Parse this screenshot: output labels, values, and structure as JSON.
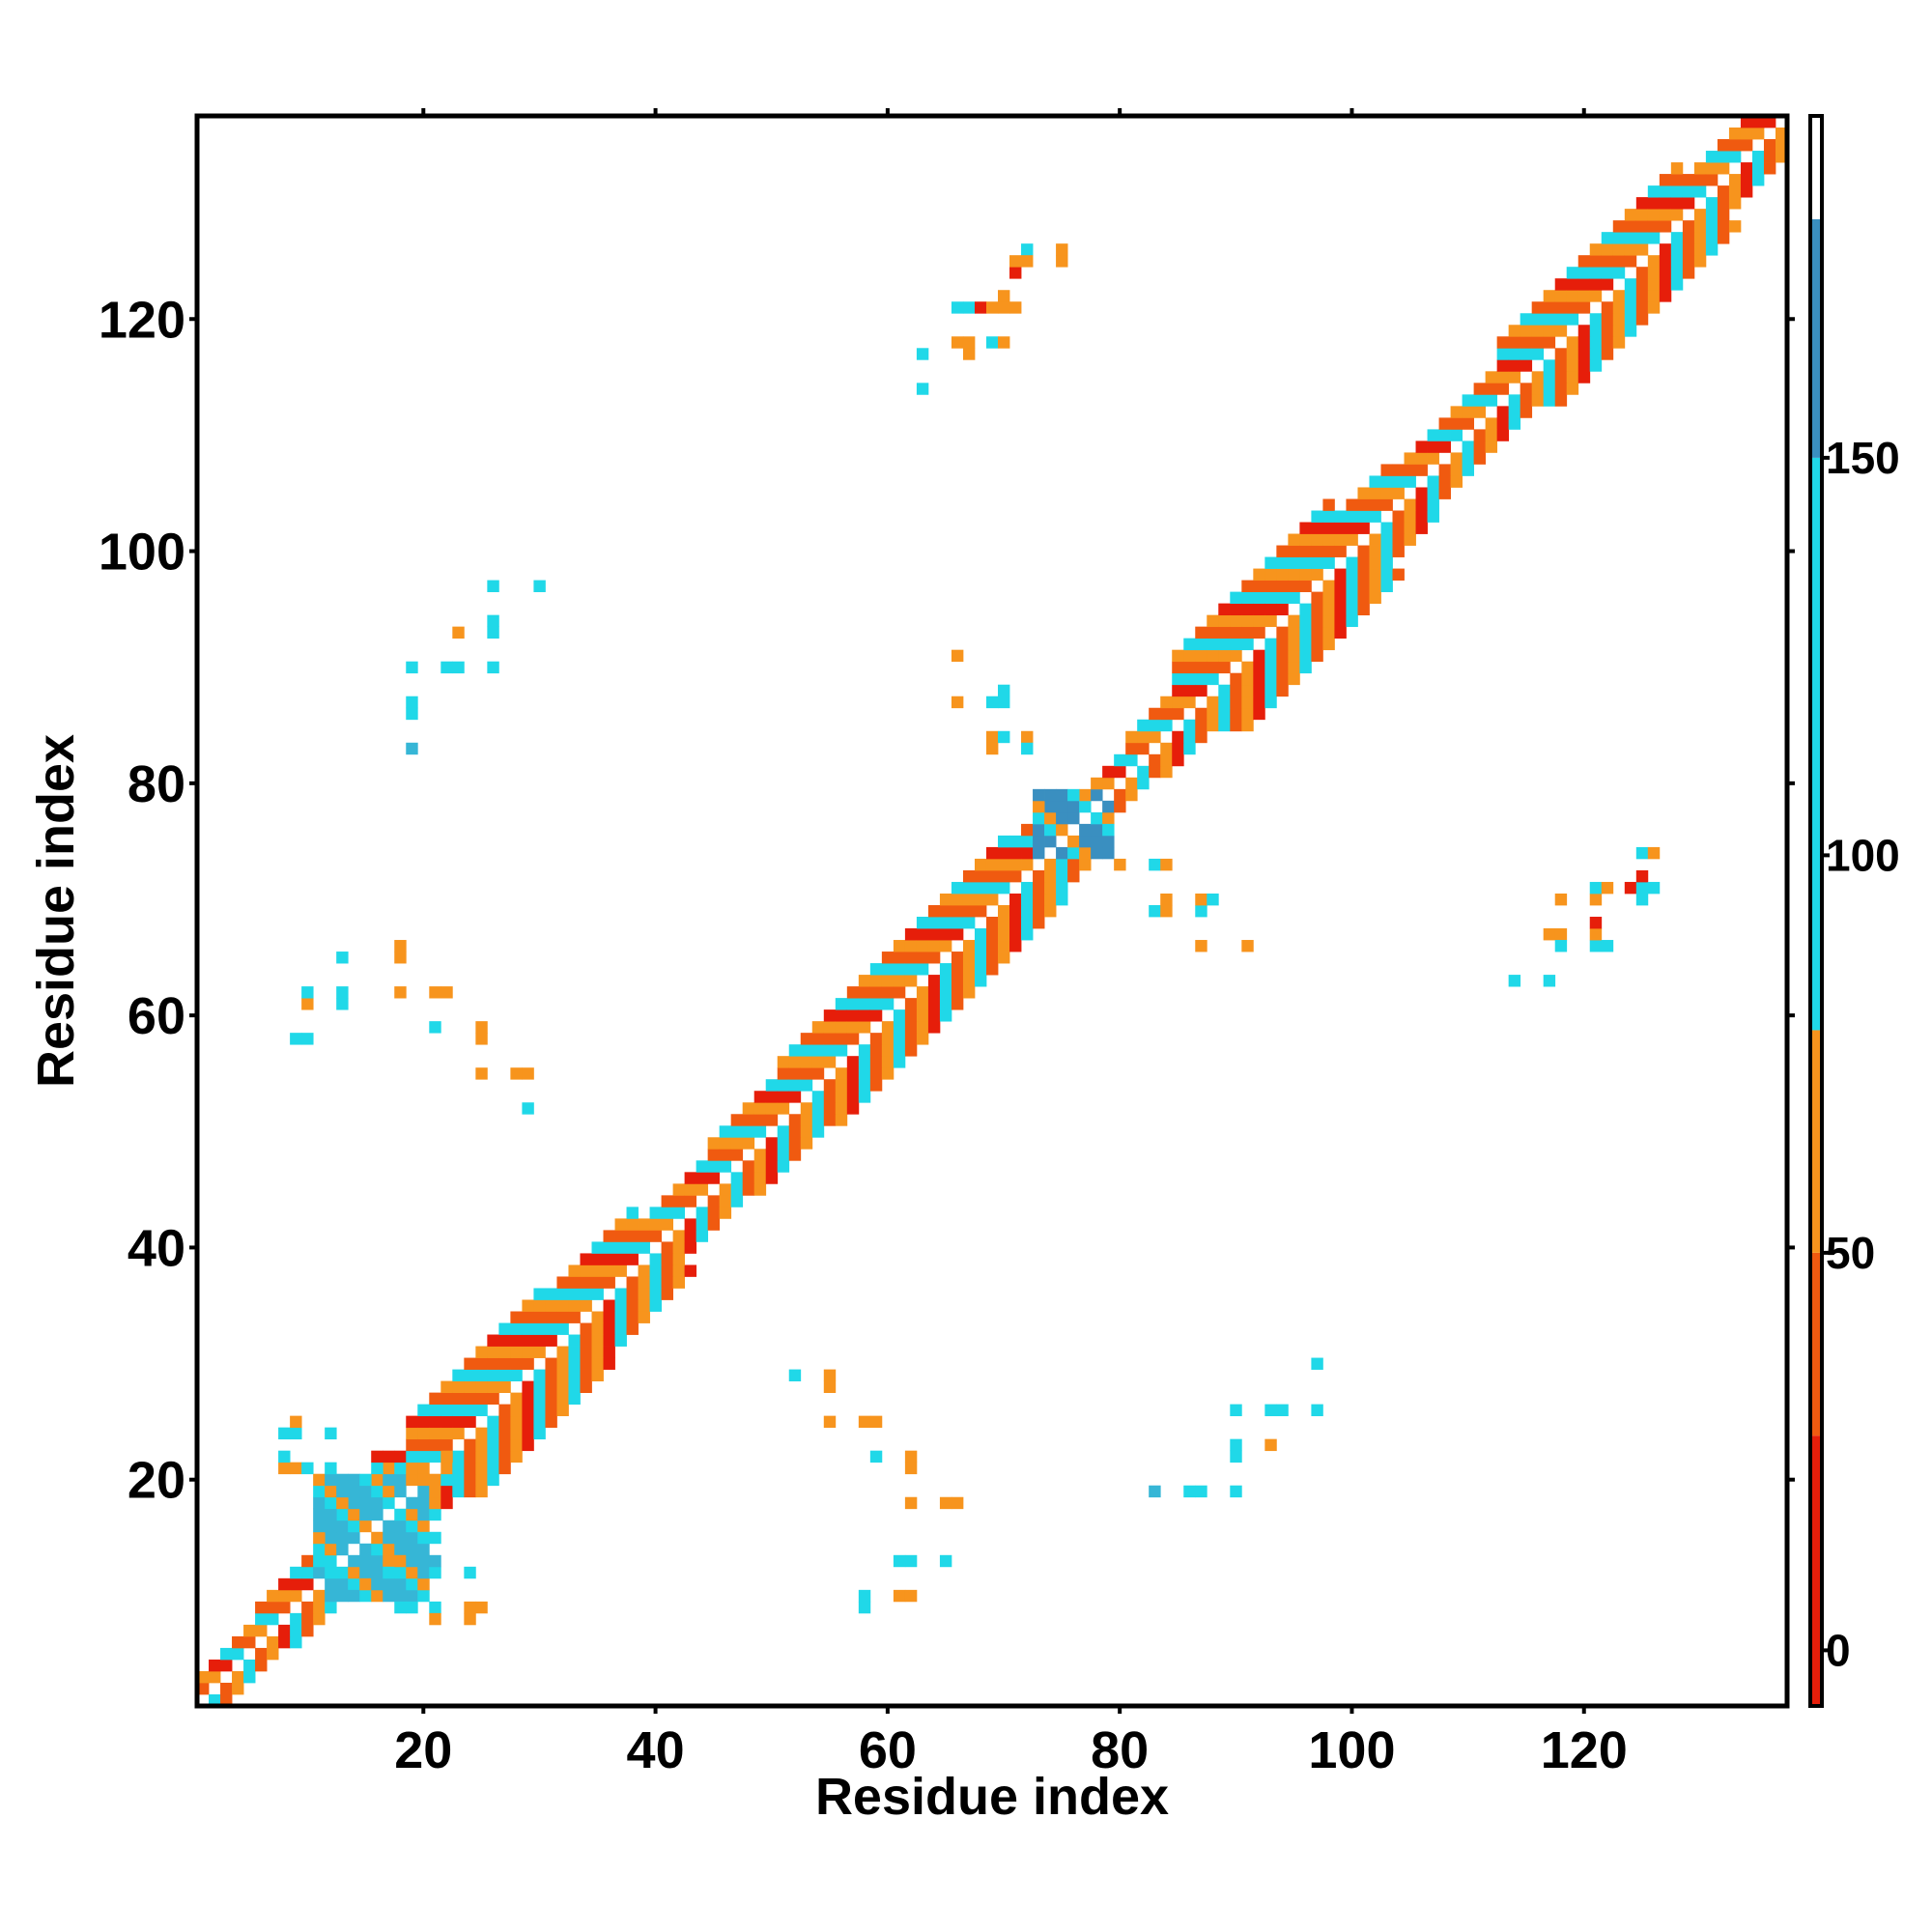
{
  "chart_data": {
    "type": "heatmap",
    "xlabel": "Residue index",
    "ylabel": "Residue index",
    "xlim": [
      0.5,
      137.5
    ],
    "ylim": [
      0.5,
      137.5
    ],
    "x_ticks": [
      20,
      40,
      60,
      80,
      100,
      120
    ],
    "y_ticks": [
      20,
      40,
      60,
      80,
      100,
      120
    ],
    "colorbar": {
      "ticks": [
        0,
        50,
        100,
        150
      ],
      "range": [
        -7,
        193
      ],
      "bands": [
        {
          "from": -7,
          "to": 27,
          "color": "#e61e0a"
        },
        {
          "from": 27,
          "to": 50,
          "color": "#f05a10"
        },
        {
          "from": 50,
          "to": 78,
          "color": "#f7941d"
        },
        {
          "from": 78,
          "to": 150,
          "color": "#20d8e8"
        },
        {
          "from": 150,
          "to": 180,
          "color": "#3a8fc0"
        },
        {
          "from": 180,
          "to": 193,
          "color": "#ffffff"
        }
      ]
    },
    "value_colors": {
      "10": "#e61e0a",
      "38": "#f05a10",
      "62": "#f7941d",
      "95": "#20d8e8",
      "130": "#36b6d6",
      "165": "#3a8fc0"
    },
    "diagonal_band": {
      "segments": [
        [
          1,
          5,
          2
        ],
        [
          6,
          12,
          3
        ],
        [
          13,
          18,
          4
        ],
        [
          19,
          30,
          6
        ],
        [
          31,
          38,
          5
        ],
        [
          39,
          44,
          3
        ],
        [
          45,
          50,
          4
        ],
        [
          51,
          70,
          5
        ],
        [
          71,
          75,
          4
        ],
        [
          76,
          80,
          2
        ],
        [
          81,
          84,
          3
        ],
        [
          85,
          98,
          6
        ],
        [
          99,
          103,
          4
        ],
        [
          104,
          112,
          3
        ],
        [
          113,
          128,
          5
        ],
        [
          129,
          137,
          3
        ]
      ],
      "pattern": [
        95,
        38,
        62,
        10,
        95,
        38,
        62
      ]
    },
    "blocks": [
      {
        "x": [
          11,
          20
        ],
        "y": [
          10,
          20
        ],
        "value": 130
      },
      {
        "x": [
          73,
          79
        ],
        "y": [
          74,
          79
        ],
        "value": 165
      }
    ],
    "points": [
      [
        9,
        58,
        95
      ],
      [
        10,
        58,
        95
      ],
      [
        10,
        61,
        62
      ],
      [
        10,
        62,
        95
      ],
      [
        13,
        61,
        95
      ],
      [
        13,
        62,
        95
      ],
      [
        13,
        65,
        95
      ],
      [
        18,
        62,
        62
      ],
      [
        18,
        65,
        62
      ],
      [
        18,
        66,
        62
      ],
      [
        21,
        62,
        62
      ],
      [
        22,
        62,
        62
      ],
      [
        21,
        59,
        95
      ],
      [
        25,
        58,
        62
      ],
      [
        25,
        59,
        62
      ],
      [
        25,
        55,
        62
      ],
      [
        28,
        55,
        62
      ],
      [
        29,
        55,
        62
      ],
      [
        29,
        52,
        95
      ],
      [
        19,
        83,
        130
      ],
      [
        19,
        86,
        95
      ],
      [
        19,
        87,
        95
      ],
      [
        19,
        90,
        95
      ],
      [
        22,
        90,
        95
      ],
      [
        23,
        90,
        95
      ],
      [
        23,
        93,
        62
      ],
      [
        26,
        90,
        95
      ],
      [
        26,
        93,
        95
      ],
      [
        26,
        94,
        95
      ],
      [
        26,
        97,
        95
      ],
      [
        30,
        97,
        95
      ],
      [
        52,
        29,
        95
      ],
      [
        55,
        29,
        62
      ],
      [
        55,
        28,
        62
      ],
      [
        55,
        25,
        62
      ],
      [
        58,
        25,
        62
      ],
      [
        59,
        25,
        62
      ],
      [
        59,
        22,
        95
      ],
      [
        62,
        22,
        62
      ],
      [
        62,
        21,
        62
      ],
      [
        62,
        18,
        62
      ],
      [
        65,
        18,
        62
      ],
      [
        66,
        18,
        62
      ],
      [
        61,
        13,
        95
      ],
      [
        62,
        13,
        95
      ],
      [
        65,
        13,
        95
      ],
      [
        58,
        10,
        95
      ],
      [
        58,
        9,
        95
      ],
      [
        61,
        10,
        62
      ],
      [
        62,
        10,
        62
      ],
      [
        83,
        19,
        130
      ],
      [
        86,
        19,
        95
      ],
      [
        87,
        19,
        95
      ],
      [
        90,
        19,
        95
      ],
      [
        90,
        22,
        95
      ],
      [
        90,
        23,
        95
      ],
      [
        90,
        26,
        95
      ],
      [
        93,
        23,
        62
      ],
      [
        93,
        26,
        95
      ],
      [
        94,
        26,
        95
      ],
      [
        97,
        26,
        95
      ],
      [
        97,
        30,
        95
      ],
      [
        63,
        114,
        95
      ],
      [
        63,
        117,
        95
      ],
      [
        66,
        118,
        62
      ],
      [
        67,
        118,
        62
      ],
      [
        67,
        117,
        62
      ],
      [
        69,
        118,
        95
      ],
      [
        70,
        118,
        62
      ],
      [
        66,
        121,
        95
      ],
      [
        67,
        121,
        95
      ],
      [
        68,
        121,
        10
      ],
      [
        69,
        121,
        62
      ],
      [
        70,
        121,
        62
      ],
      [
        71,
        121,
        62
      ],
      [
        70,
        122,
        62
      ],
      [
        71,
        124,
        10
      ],
      [
        71,
        125,
        62
      ],
      [
        72,
        126,
        95
      ],
      [
        72,
        125,
        62
      ],
      [
        75,
        126,
        62
      ],
      [
        75,
        125,
        62
      ],
      [
        66,
        87,
        62
      ],
      [
        66,
        91,
        62
      ],
      [
        69,
        84,
        62
      ],
      [
        69,
        87,
        95
      ],
      [
        70,
        87,
        95
      ],
      [
        70,
        88,
        95
      ],
      [
        70,
        84,
        95
      ],
      [
        69,
        83,
        62
      ],
      [
        72,
        84,
        62
      ],
      [
        72,
        83,
        95
      ],
      [
        80,
        73,
        62
      ],
      [
        83,
        73,
        95
      ],
      [
        84,
        73,
        62
      ],
      [
        83,
        69,
        95
      ],
      [
        84,
        70,
        62
      ],
      [
        84,
        69,
        62
      ],
      [
        87,
        69,
        95
      ],
      [
        87,
        70,
        62
      ],
      [
        88,
        70,
        95
      ],
      [
        87,
        66,
        62
      ],
      [
        91,
        66,
        62
      ],
      [
        114,
        63,
        95
      ],
      [
        117,
        63,
        95
      ],
      [
        117,
        67,
        62
      ],
      [
        118,
        67,
        62
      ],
      [
        118,
        66,
        95
      ],
      [
        118,
        70,
        62
      ],
      [
        121,
        66,
        95
      ],
      [
        121,
        67,
        62
      ],
      [
        121,
        68,
        10
      ],
      [
        121,
        70,
        62
      ],
      [
        121,
        71,
        95
      ],
      [
        122,
        71,
        62
      ],
      [
        122,
        66,
        95
      ],
      [
        124,
        71,
        10
      ],
      [
        125,
        70,
        95
      ],
      [
        125,
        71,
        95
      ],
      [
        125,
        72,
        10
      ],
      [
        126,
        71,
        95
      ],
      [
        125,
        74,
        95
      ],
      [
        126,
        74,
        62
      ],
      [
        8,
        21,
        62
      ],
      [
        8,
        22,
        95
      ],
      [
        8,
        24,
        95
      ],
      [
        9,
        24,
        95
      ],
      [
        9,
        25,
        62
      ],
      [
        9,
        21,
        62
      ],
      [
        10,
        21,
        95
      ],
      [
        12,
        21,
        95
      ],
      [
        12,
        24,
        95
      ],
      [
        11,
        13,
        95
      ],
      [
        12,
        13,
        95
      ],
      [
        12,
        12,
        95
      ],
      [
        13,
        12,
        95
      ],
      [
        14,
        12,
        62
      ],
      [
        18,
        9,
        95
      ],
      [
        19,
        9,
        95
      ],
      [
        21,
        9,
        95
      ],
      [
        21,
        8,
        62
      ],
      [
        24,
        9,
        62
      ],
      [
        24,
        8,
        62
      ],
      [
        25,
        9,
        62
      ],
      [
        24,
        12,
        95
      ],
      [
        21,
        12,
        95
      ],
      [
        21,
        13,
        130
      ],
      [
        21,
        15,
        95
      ],
      [
        21,
        17,
        95
      ],
      [
        21,
        18,
        62
      ],
      [
        17,
        13,
        62
      ],
      [
        17,
        12,
        95
      ],
      [
        16,
        21,
        95
      ],
      [
        17,
        21,
        62
      ],
      [
        16,
        22,
        10
      ],
      [
        17,
        22,
        10
      ],
      [
        18,
        22,
        10
      ],
      [
        18,
        21,
        95
      ],
      [
        19,
        20,
        62
      ],
      [
        20,
        20,
        62
      ],
      [
        22,
        20,
        95
      ],
      [
        22,
        21,
        62
      ],
      [
        22,
        22,
        62
      ]
    ]
  }
}
